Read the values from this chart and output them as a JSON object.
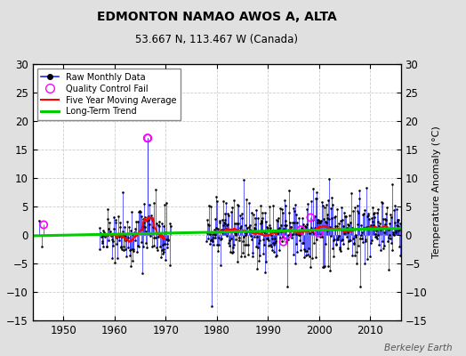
{
  "title": "EDMONTON NAMAO AWOS A, ALTA",
  "subtitle": "53.667 N, 113.467 W (Canada)",
  "ylabel": "Temperature Anomaly (°C)",
  "credit": "Berkeley Earth",
  "ylim": [
    -15,
    30
  ],
  "yticks": [
    -15,
    -10,
    -5,
    0,
    5,
    10,
    15,
    20,
    25,
    30
  ],
  "xlim": [
    1944,
    2016
  ],
  "xticks": [
    1950,
    1960,
    1970,
    1980,
    1990,
    2000,
    2010
  ],
  "trend_slope": 0.018,
  "trend_intercept": 0.5,
  "bg_color": "#e0e0e0",
  "plot_bg": "#ffffff",
  "raw_color": "#2222ff",
  "raw_marker_color": "#000000",
  "qc_color": "#ff00ff",
  "moving_avg_color": "#ff0000",
  "trend_color": "#00cc00",
  "seed": 42
}
